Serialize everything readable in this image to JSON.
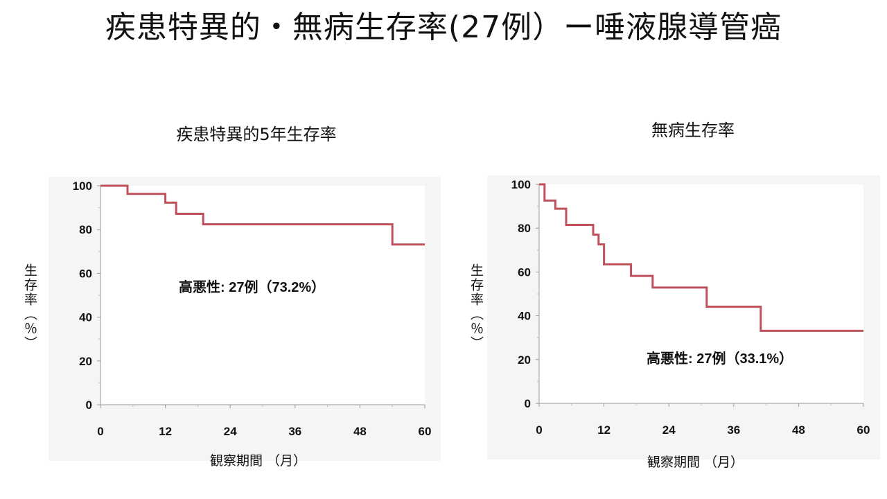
{
  "page_title": "疾患特異的・無病生存率(27例）ー唾液腺導管癌",
  "chart_data": [
    {
      "type": "line",
      "step": true,
      "title": "疾患特異的5年生存率",
      "xlabel": "観察期間 （月）",
      "ylabel": "生存率（％）",
      "xlim": [
        0,
        60
      ],
      "ylim": [
        0,
        100
      ],
      "xticks": [
        0,
        12,
        24,
        36,
        48,
        60
      ],
      "yticks": [
        0,
        20,
        40,
        60,
        80,
        100
      ],
      "grid": false,
      "line_color": "#c0505b",
      "series": [
        {
          "x": [
            0,
            5,
            12,
            14,
            19,
            54,
            60
          ],
          "y": [
            100,
            96.3,
            92.3,
            87.2,
            82.4,
            73.2,
            73.2
          ]
        }
      ],
      "annotation": "高悪性: 27例（73.2%）"
    },
    {
      "type": "line",
      "step": true,
      "title": "無病生存率",
      "xlabel": "観察期間 （月）",
      "ylabel": "生存率（％）",
      "xlim": [
        0,
        60
      ],
      "ylim": [
        0,
        100
      ],
      "xticks": [
        0,
        12,
        24,
        36,
        48,
        60
      ],
      "yticks": [
        0,
        20,
        40,
        60,
        80,
        100
      ],
      "grid": false,
      "line_color": "#c0505b",
      "series": [
        {
          "x": [
            0,
            1,
            3,
            5,
            10,
            11,
            12,
            17,
            21,
            31,
            41,
            60
          ],
          "y": [
            100,
            92.6,
            88.9,
            81.5,
            77.0,
            72.6,
            63.5,
            58.2,
            52.9,
            44.1,
            33.1,
            33.1
          ]
        }
      ],
      "annotation": "高悪性: 27例（33.1%）"
    }
  ]
}
